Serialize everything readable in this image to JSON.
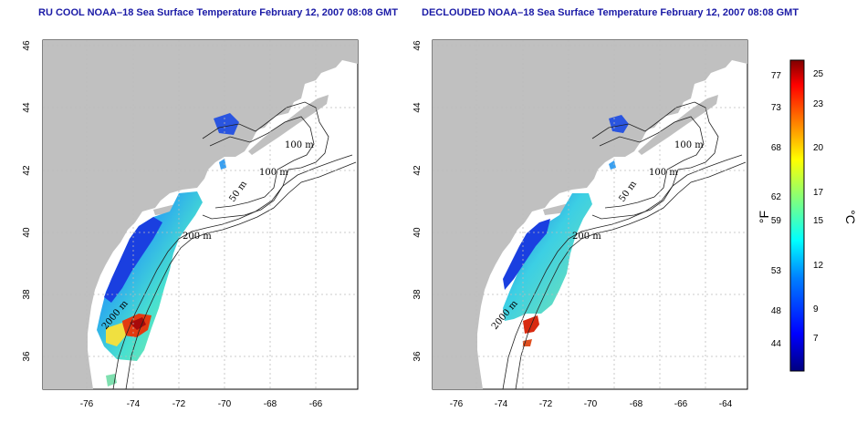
{
  "titles": {
    "left": "RU COOL NOAA–18 Sea Surface Temperature February 12, 2007 08:08 GMT",
    "right": "DECLOUDED NOAA–18 Sea Surface Temperature February 12, 2007 08:08 GMT"
  },
  "axes": {
    "x_ticks": [
      "-76",
      "-74",
      "-72",
      "-70",
      "-68",
      "-66",
      "-64"
    ],
    "y_ticks": [
      "36",
      "38",
      "40",
      "42",
      "44",
      "46"
    ]
  },
  "contours": {
    "label_100m": "100 m",
    "label_50m": "50 m",
    "label_200m": "200 m",
    "label_2000m": "2000 m"
  },
  "colorbar": {
    "f_ticks": [
      "77",
      "73",
      "68",
      "62",
      "59",
      "53",
      "48",
      "44"
    ],
    "c_ticks": [
      "25",
      "23",
      "20",
      "17",
      "15",
      "12",
      "9",
      "7"
    ],
    "f_unit": "°F",
    "c_unit": "°C"
  },
  "colors": {
    "land": "#c0c0c0",
    "title": "#1a1aa6"
  }
}
